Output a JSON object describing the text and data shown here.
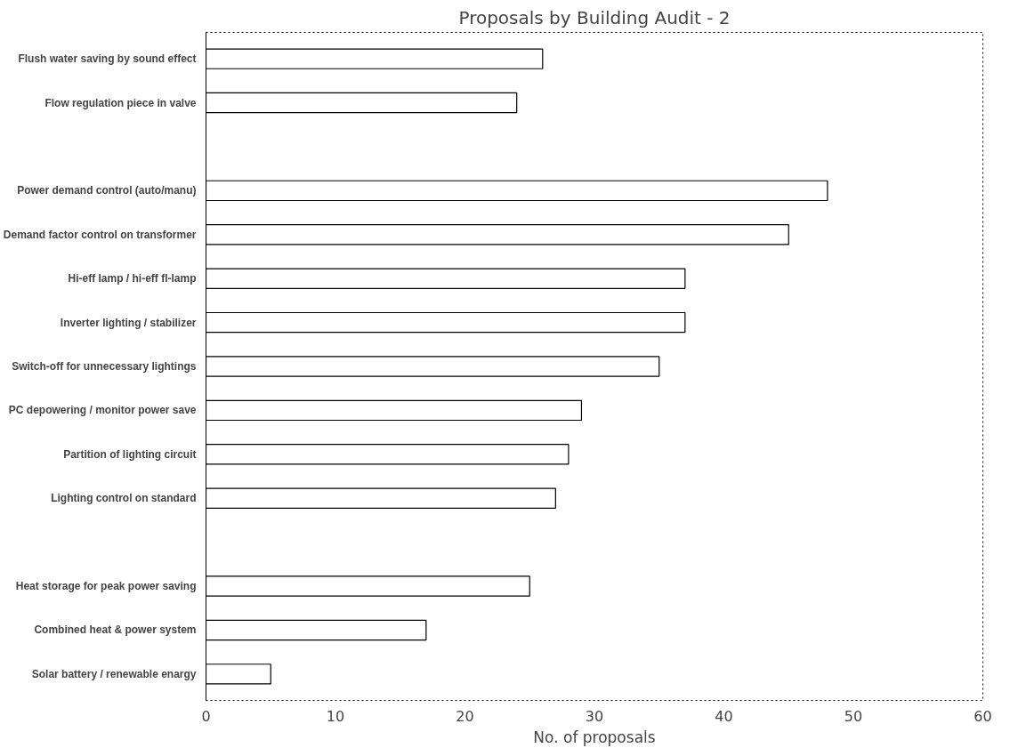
{
  "chart_data": {
    "type": "bar",
    "orientation": "horizontal",
    "title": "Proposals by Building Audit - 2",
    "xlabel": "No. of proposals",
    "categories": [
      "Flush water saving by sound effect",
      "Flow regulation piece in valve",
      null,
      "Power demand control (auto/manu)",
      "Demand factor control on transformer",
      "Hi-eff lamp / hi-eff fl-lamp",
      "Inverter lighting / stabilizer",
      "Switch-off for unnecessary lightings",
      "PC depowering / monitor power save",
      "Partition of lighting circuit",
      "Lighting control on standard",
      null,
      "Heat storage for peak power saving",
      "Combined heat & power system",
      "Solar battery / renewable enargy"
    ],
    "values": [
      26,
      24,
      null,
      48,
      45,
      37,
      37,
      35,
      29,
      28,
      27,
      null,
      25,
      17,
      5
    ],
    "color": "#ffffff",
    "xlim": [
      0,
      60
    ],
    "xticks": [
      0,
      10,
      20,
      30,
      40,
      50,
      60
    ],
    "grid": false
  }
}
